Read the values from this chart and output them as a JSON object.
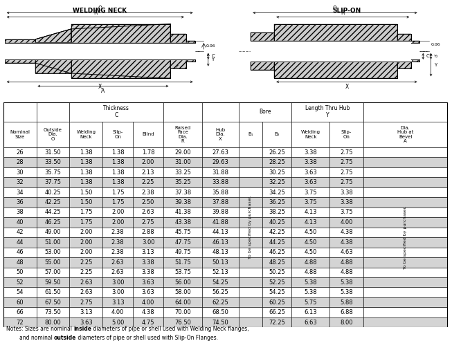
{
  "title_wn": "WELDING NECK",
  "title_so": "SLIP-ON",
  "rows": [
    [
      "26",
      "31.50",
      "1.38",
      "1.38",
      "1.78",
      "29.00",
      "27.63",
      "",
      "26.25",
      "3.38",
      "2.75",
      ""
    ],
    [
      "28",
      "33.50",
      "1.38",
      "1.38",
      "2.00",
      "31.00",
      "29.63",
      "",
      "28.25",
      "3.38",
      "2.75",
      ""
    ],
    [
      "30",
      "35.75",
      "1.38",
      "1.38",
      "2.13",
      "33.25",
      "31.88",
      "",
      "30.25",
      "3.63",
      "2.75",
      ""
    ],
    [
      "32",
      "37.75",
      "1.38",
      "1.38",
      "2.25",
      "35.25",
      "33.88",
      "",
      "32.25",
      "3.63",
      "2.75",
      ""
    ],
    [
      "34",
      "40.25",
      "1.50",
      "1.75",
      "2.38",
      "37.38",
      "35.88",
      "",
      "34.25",
      "3.75",
      "3.38",
      ""
    ],
    [
      "36",
      "42.25",
      "1.50",
      "1.75",
      "2.50",
      "39.38",
      "37.88",
      "",
      "36.25",
      "3.75",
      "3.38",
      ""
    ],
    [
      "38",
      "44.25",
      "1.75",
      "2.00",
      "2.63",
      "41.38",
      "39.88",
      "",
      "38.25",
      "4.13",
      "3.75",
      ""
    ],
    [
      "40",
      "46.25",
      "1.75",
      "2.00",
      "2.75",
      "43.38",
      "41.88",
      "",
      "40.25",
      "4.13",
      "4.00",
      ""
    ],
    [
      "42",
      "49.00",
      "2.00",
      "2.38",
      "2.88",
      "45.75",
      "44.13",
      "",
      "42.25",
      "4.50",
      "4.38",
      ""
    ],
    [
      "44",
      "51.00",
      "2.00",
      "2.38",
      "3.00",
      "47.75",
      "46.13",
      "",
      "44.25",
      "4.50",
      "4.38",
      ""
    ],
    [
      "46",
      "53.00",
      "2.00",
      "2.38",
      "3.13",
      "49.75",
      "48.13",
      "",
      "46.25",
      "4.50",
      "4.63",
      ""
    ],
    [
      "48",
      "55.00",
      "2.25",
      "2.63",
      "3.38",
      "51.75",
      "50.13",
      "",
      "48.25",
      "4.88",
      "4.88",
      ""
    ],
    [
      "50",
      "57.00",
      "2.25",
      "2.63",
      "3.38",
      "53.75",
      "52.13",
      "",
      "50.25",
      "4.88",
      "4.88",
      ""
    ],
    [
      "52",
      "59.50",
      "2.63",
      "3.00",
      "3.63",
      "56.00",
      "54.25",
      "",
      "52.25",
      "5.38",
      "5.38",
      ""
    ],
    [
      "54",
      "61.50",
      "2.63",
      "3.00",
      "3.63",
      "58.00",
      "56.25",
      "",
      "54.25",
      "5.38",
      "5.38",
      ""
    ],
    [
      "60",
      "67.50",
      "2.75",
      "3.13",
      "4.00",
      "64.00",
      "62.25",
      "",
      "60.25",
      "5.75",
      "5.88",
      ""
    ],
    [
      "66",
      "73.50",
      "3.13",
      "4.00",
      "4.38",
      "70.00",
      "68.50",
      "",
      "66.25",
      "6.13",
      "6.88",
      ""
    ],
    [
      "72",
      "80.00",
      "3.63",
      "5.00",
      "4.75",
      "76.50",
      "74.50",
      "",
      "72.25",
      "6.63",
      "8.00",
      ""
    ]
  ],
  "shaded_rows": [
    1,
    3,
    5,
    7,
    9,
    11,
    13,
    15,
    17
  ],
  "shade_color": "#d4d4d4",
  "white_color": "#ffffff",
  "border_color": "#000000",
  "rotated_text": "To be specified by purchaser.",
  "note_line1_parts": [
    [
      "Notes: Sizes are nominal ",
      false
    ],
    [
      "inside",
      true
    ],
    [
      " diameters of pipe or shell used with Welding Neck flanges,",
      false
    ]
  ],
  "note_line2_parts": [
    [
      "        and nominal ",
      false
    ],
    [
      "outside",
      true
    ],
    [
      " diameters of pipe or shell used with Slip-On Flanges.",
      false
    ]
  ]
}
